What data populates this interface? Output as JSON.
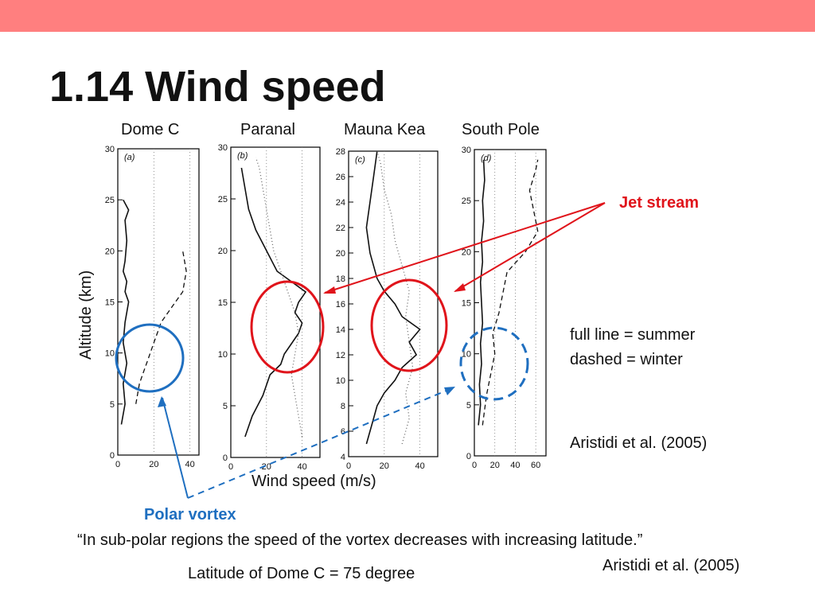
{
  "slide": {
    "title": "1.14 Wind speed",
    "accent_color": "#ff7f7f",
    "site_labels": [
      "Dome C",
      "Paranal",
      "Mauna Kea",
      "South Pole"
    ],
    "ylabel": "Altitude (km)",
    "xlabel": "Wind speed (m/s)",
    "legend_line1": "full line = summer",
    "legend_line2": "dashed = winter",
    "citation_right": "Aristidi et al. (2005)",
    "jet_stream": "Jet stream",
    "polar_vortex": "Polar vortex",
    "quote": "“In sub-polar regions the speed of the vortex decreases with increasing latitude.”",
    "quote_citation": "Aristidi et al. (2005)",
    "latitude_note": "Latitude of Dome C = 75 degree",
    "red_color": "#e0141b",
    "blue_color": "#1f6fc0"
  },
  "chart_data": [
    {
      "type": "line",
      "site": "Dome C",
      "panel_tag": "(a)",
      "xlim": [
        0,
        45
      ],
      "ylim": [
        0,
        30
      ],
      "xticks": [
        0,
        20,
        40
      ],
      "yticks": [
        0,
        5,
        10,
        15,
        20,
        25,
        30
      ],
      "series": [
        {
          "style": "solid",
          "x": [
            2,
            4,
            3,
            5,
            3,
            4,
            6,
            4,
            5,
            3,
            4,
            5,
            4,
            6,
            3
          ],
          "y": [
            3,
            5,
            7,
            9,
            11,
            13,
            15,
            16,
            17,
            18,
            19,
            21,
            23,
            24,
            25
          ]
        },
        {
          "style": "dashed",
          "x": [
            10,
            12,
            14,
            16,
            18,
            20,
            22,
            24,
            28,
            32,
            36,
            38,
            36
          ],
          "y": [
            5,
            7,
            8,
            9,
            10,
            11,
            12,
            13,
            14,
            15,
            16,
            18,
            20
          ]
        }
      ]
    },
    {
      "type": "line",
      "site": "Paranal",
      "panel_tag": "(b)",
      "xlim": [
        0,
        50
      ],
      "ylim": [
        0,
        30
      ],
      "xticks": [
        0,
        20,
        40
      ],
      "yticks": [
        0,
        5,
        10,
        15,
        20,
        25,
        30
      ],
      "series": [
        {
          "style": "solid",
          "x": [
            8,
            12,
            18,
            22,
            28,
            30,
            34,
            38,
            40,
            36,
            38,
            42,
            34,
            26,
            20,
            14,
            10,
            8,
            6
          ],
          "y": [
            2,
            4,
            6,
            8,
            9,
            10,
            11,
            12,
            13,
            14,
            15,
            16,
            17,
            18,
            20,
            22,
            24,
            26,
            28
          ]
        },
        {
          "style": "dotted",
          "x": [
            40,
            38,
            36,
            34,
            36,
            38,
            36,
            32,
            28,
            24,
            22,
            20,
            18,
            16,
            14
          ],
          "y": [
            2,
            4,
            6,
            8,
            10,
            12,
            14,
            16,
            18,
            20,
            22,
            24,
            26,
            28,
            29
          ]
        }
      ]
    },
    {
      "type": "line",
      "site": "Mauna Kea",
      "panel_tag": "(c)",
      "xlim": [
        0,
        50
      ],
      "ylim": [
        4,
        28
      ],
      "xticks": [
        0,
        20,
        40
      ],
      "yticks": [
        4,
        6,
        8,
        10,
        12,
        14,
        16,
        18,
        20,
        22,
        24,
        26,
        28
      ],
      "series": [
        {
          "style": "solid",
          "x": [
            10,
            14,
            16,
            20,
            26,
            30,
            38,
            34,
            40,
            30,
            26,
            20,
            16,
            12,
            10,
            12,
            14,
            16
          ],
          "y": [
            5,
            7,
            8,
            9,
            10,
            11,
            12,
            13,
            14,
            15,
            16,
            17,
            18,
            20,
            22,
            24,
            26,
            28
          ]
        },
        {
          "style": "dotted",
          "x": [
            30,
            34,
            32,
            36,
            34,
            32,
            34,
            30,
            26,
            24,
            20,
            18,
            16
          ],
          "y": [
            5,
            7,
            9,
            11,
            13,
            15,
            17,
            19,
            21,
            23,
            25,
            27,
            28
          ]
        }
      ]
    },
    {
      "type": "line",
      "site": "South Pole",
      "panel_tag": "(d)",
      "xlim": [
        0,
        70
      ],
      "ylim": [
        0,
        30
      ],
      "xticks": [
        0,
        20,
        40,
        60
      ],
      "yticks": [
        0,
        5,
        10,
        15,
        20,
        25,
        30
      ],
      "series": [
        {
          "style": "solid",
          "x": [
            4,
            6,
            5,
            7,
            6,
            8,
            7,
            6,
            8,
            7,
            9,
            8,
            10,
            9
          ],
          "y": [
            3,
            5,
            7,
            9,
            11,
            13,
            15,
            17,
            19,
            21,
            23,
            25,
            27,
            29
          ]
        },
        {
          "style": "dashed",
          "x": [
            8,
            12,
            16,
            20,
            18,
            24,
            28,
            32,
            50,
            62,
            58,
            54,
            60,
            62
          ],
          "y": [
            3,
            6,
            8,
            10,
            12,
            14,
            16,
            18,
            20,
            22,
            24,
            26,
            28,
            29
          ]
        }
      ]
    }
  ]
}
